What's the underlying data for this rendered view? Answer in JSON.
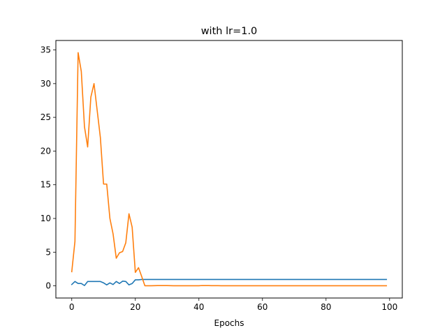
{
  "chart_data": {
    "type": "line",
    "title": "with lr=1.0",
    "xlabel": "Epochs",
    "ylabel": "",
    "xlim": [
      -5,
      104
    ],
    "ylim": [
      -1.8,
      36.4
    ],
    "xticks": [
      0,
      20,
      40,
      60,
      80,
      100
    ],
    "yticks": [
      0,
      5,
      10,
      15,
      20,
      25,
      30,
      35
    ],
    "grid": false,
    "legend": "none",
    "series": [
      {
        "color": "#1f77b4",
        "x": [
          0,
          1,
          2,
          3,
          4,
          5,
          6,
          7,
          8,
          9,
          10,
          11,
          12,
          13,
          14,
          15,
          16,
          17,
          18,
          19,
          20,
          21,
          22,
          23,
          24,
          25,
          26,
          27,
          28,
          29,
          30,
          31,
          32,
          33,
          34,
          35,
          36,
          37,
          38,
          39,
          40,
          41,
          42,
          43,
          44,
          45,
          46,
          47,
          48,
          49,
          50,
          51,
          52,
          53,
          54,
          55,
          56,
          57,
          58,
          59,
          60,
          61,
          62,
          63,
          64,
          65,
          66,
          67,
          68,
          69,
          70,
          71,
          72,
          73,
          74,
          75,
          76,
          77,
          78,
          79,
          80,
          81,
          82,
          83,
          84,
          85,
          86,
          87,
          88,
          89,
          90,
          91,
          92,
          93,
          94,
          95,
          96,
          97,
          98,
          99
        ],
        "y": [
          0.2,
          0.65,
          0.35,
          0.35,
          0.05,
          0.65,
          0.65,
          0.65,
          0.65,
          0.65,
          0.45,
          0.15,
          0.45,
          0.2,
          0.65,
          0.35,
          0.7,
          0.65,
          0.15,
          0.35,
          0.9,
          0.9,
          0.95,
          0.95,
          0.95,
          0.95,
          0.95,
          0.95,
          0.95,
          0.95,
          0.95,
          0.95,
          0.95,
          0.95,
          0.95,
          0.95,
          0.95,
          0.95,
          0.95,
          0.95,
          0.95,
          0.95,
          0.95,
          0.95,
          0.95,
          0.95,
          0.95,
          0.95,
          0.95,
          0.95,
          0.95,
          0.95,
          0.95,
          0.95,
          0.95,
          0.95,
          0.95,
          0.95,
          0.95,
          0.95,
          0.95,
          0.95,
          0.95,
          0.95,
          0.95,
          0.95,
          0.95,
          0.95,
          0.95,
          0.95,
          0.95,
          0.95,
          0.95,
          0.95,
          0.95,
          0.95,
          0.95,
          0.95,
          0.95,
          0.95,
          0.95,
          0.95,
          0.95,
          0.95,
          0.95,
          0.95,
          0.95,
          0.95,
          0.95,
          0.95,
          0.95,
          0.95,
          0.95,
          0.95,
          0.95,
          0.95,
          0.95,
          0.95,
          0.95,
          0.95
        ]
      },
      {
        "color": "#ff7f0e",
        "x": [
          0,
          1,
          2,
          3,
          4,
          5,
          6,
          7,
          8,
          9,
          10,
          11,
          12,
          13,
          14,
          15,
          16,
          17,
          18,
          19,
          20,
          21,
          22,
          23,
          24,
          25,
          26,
          27,
          28,
          29,
          30,
          31,
          32,
          33,
          34,
          35,
          36,
          37,
          38,
          39,
          40,
          41,
          42,
          43,
          44,
          45,
          46,
          47,
          48,
          49,
          50,
          51,
          52,
          53,
          54,
          55,
          56,
          57,
          58,
          59,
          60,
          61,
          62,
          63,
          64,
          65,
          66,
          67,
          68,
          69,
          70,
          71,
          72,
          73,
          74,
          75,
          76,
          77,
          78,
          79,
          80,
          81,
          82,
          83,
          84,
          85,
          86,
          87,
          88,
          89,
          90,
          91,
          92,
          93,
          94,
          95,
          96,
          97,
          98,
          99
        ],
        "y": [
          2.1,
          6.6,
          34.6,
          31.8,
          23.6,
          20.6,
          28.0,
          30.0,
          26.0,
          22.0,
          15.1,
          15.1,
          10.0,
          7.7,
          4.1,
          4.9,
          5.1,
          6.4,
          10.7,
          8.7,
          2.0,
          2.7,
          1.4,
          0.02,
          0.02,
          0.02,
          0.03,
          0.04,
          0.04,
          0.05,
          0.04,
          0.03,
          0.02,
          0.02,
          0.02,
          0.02,
          0.02,
          0.02,
          0.02,
          0.02,
          0.02,
          0.05,
          0.04,
          0.04,
          0.03,
          0.03,
          0.03,
          0.02,
          0.02,
          0.02,
          0.02,
          0.02,
          0.02,
          0.02,
          0.02,
          0.02,
          0.02,
          0.02,
          0.02,
          0.02,
          0.02,
          0.02,
          0.02,
          0.02,
          0.02,
          0.02,
          0.02,
          0.02,
          0.02,
          0.02,
          0.02,
          0.02,
          0.02,
          0.02,
          0.02,
          0.02,
          0.02,
          0.02,
          0.02,
          0.02,
          0.02,
          0.02,
          0.02,
          0.02,
          0.02,
          0.02,
          0.02,
          0.02,
          0.02,
          0.02,
          0.02,
          0.02,
          0.02,
          0.02,
          0.02,
          0.02,
          0.02,
          0.02,
          0.02,
          0.02
        ]
      }
    ]
  }
}
